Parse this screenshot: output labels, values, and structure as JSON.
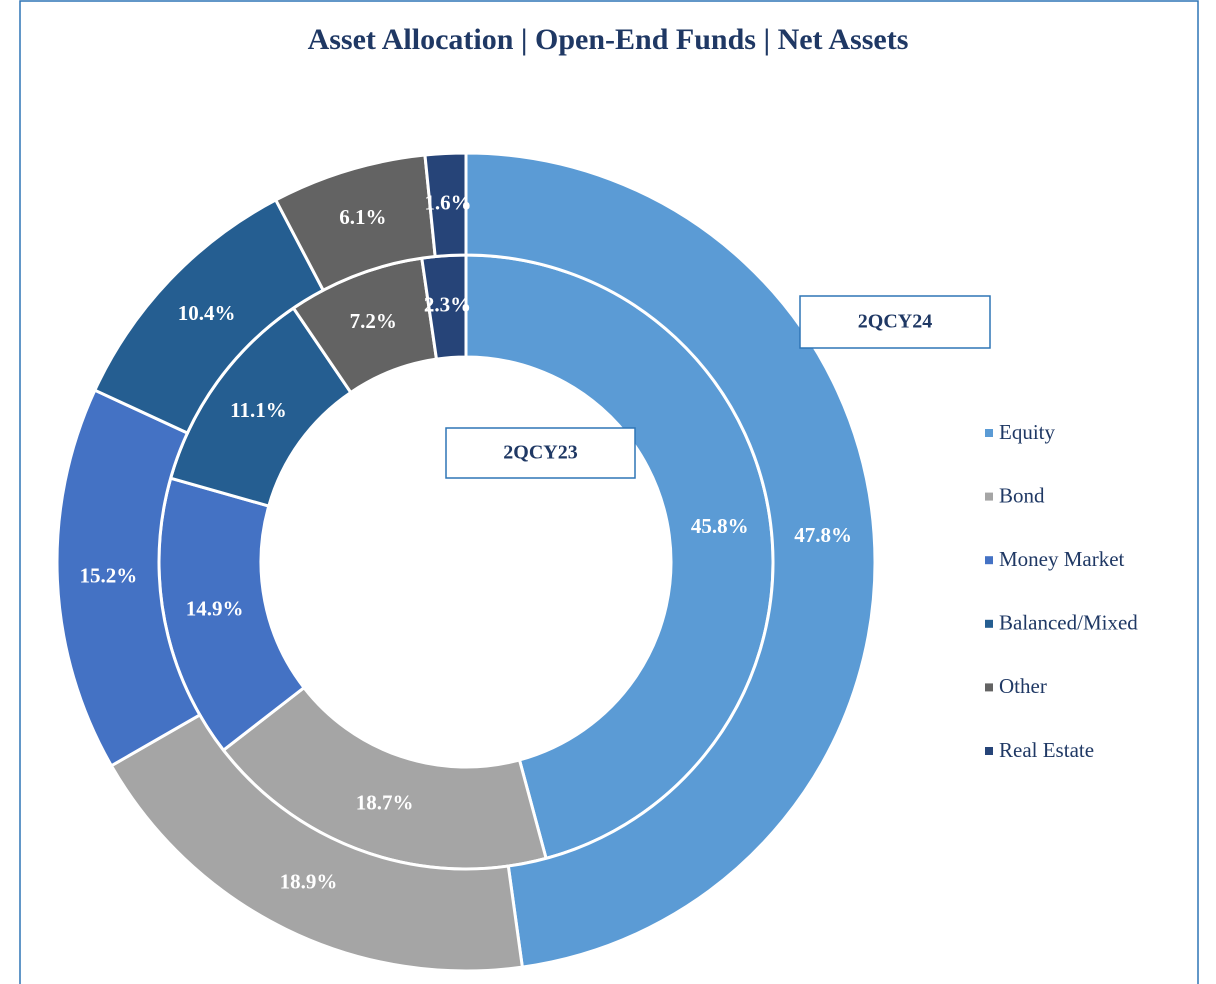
{
  "chart_data": {
    "type": "donut",
    "title": "Asset Allocation | Open-End Funds | Net Assets",
    "categories": [
      "Equity",
      "Bond",
      "Money Market",
      "Balanced/Mixed",
      "Other",
      "Real Estate"
    ],
    "colors": [
      "#5b9bd5",
      "#a5a5a5",
      "#4472c4",
      "#255e91",
      "#636363",
      "#264478"
    ],
    "series": [
      {
        "name": "2QCY23",
        "values": [
          45.8,
          18.7,
          14.9,
          11.1,
          7.2,
          2.3
        ],
        "value_labels": [
          "45.8%",
          "18.7%",
          "14.9%",
          "11.1%",
          "7.2%",
          "2.3%"
        ]
      },
      {
        "name": "2QCY24",
        "values": [
          47.8,
          18.9,
          15.2,
          10.4,
          6.1,
          1.6
        ],
        "value_labels": [
          "47.8%",
          "18.9%",
          "15.2%",
          "10.4%",
          "6.1%",
          "1.6%"
        ]
      }
    ],
    "legend": "right"
  }
}
